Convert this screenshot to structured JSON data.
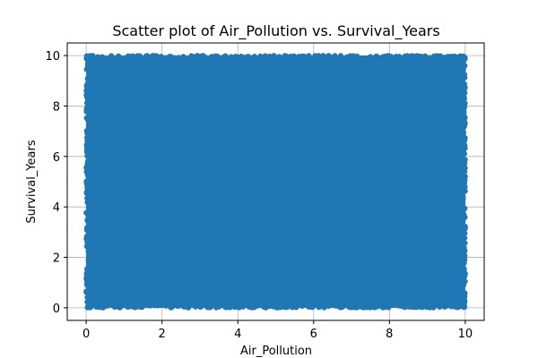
{
  "chart_data": {
    "type": "scatter",
    "title": "Scatter plot of Air_Pollution vs. Survival_Years",
    "xlabel": "Air_Pollution",
    "ylabel": "Survival_Years",
    "xlim": [
      -0.5,
      10.5
    ],
    "ylim": [
      -0.5,
      10.5
    ],
    "x_ticks": [
      0,
      2,
      4,
      6,
      8,
      10
    ],
    "y_ticks": [
      0,
      2,
      4,
      6,
      8,
      10
    ],
    "x_tick_labels": [
      "0",
      "2",
      "4",
      "6",
      "8",
      "10"
    ],
    "y_tick_labels": [
      "0",
      "2",
      "4",
      "6",
      "8",
      "10"
    ],
    "grid": true,
    "legend": "none",
    "point_color": "#1f77b4",
    "points": {
      "description_of_extent": "dense uniform cloud",
      "x_range": [
        0,
        10
      ],
      "y_range": [
        0,
        10
      ]
    }
  }
}
